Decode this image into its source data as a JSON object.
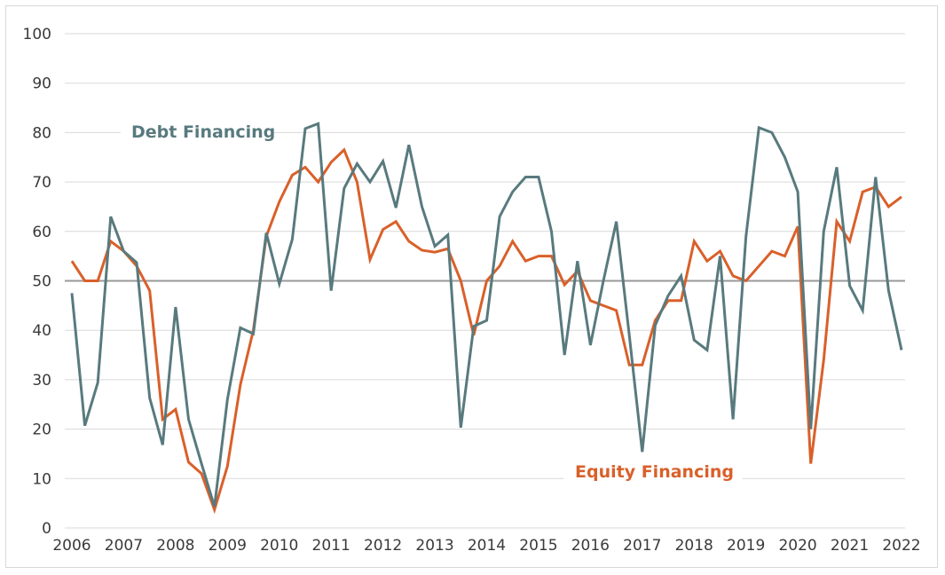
{
  "chart_data": {
    "type": "line",
    "title": "",
    "xlabel": "",
    "ylabel": "",
    "ylim": [
      0,
      100
    ],
    "yticks": [
      0,
      10,
      20,
      30,
      40,
      50,
      60,
      70,
      80,
      90,
      100
    ],
    "xlim": [
      2006,
      2022
    ],
    "xticks": [
      "2006",
      "2007",
      "2008",
      "2009",
      "2010",
      "2011",
      "2012",
      "2013",
      "2014",
      "2015",
      "2016",
      "2017",
      "2018",
      "2019",
      "2020",
      "2021",
      "2022"
    ],
    "frequency": "quarterly",
    "grid": true,
    "reference_line": 50,
    "colors": {
      "debt": "#587a7e",
      "equity": "#d9602a",
      "grid": "#d9d9d9",
      "reference": "#9a9a9a"
    },
    "series": [
      {
        "name": "Debt Financing",
        "values": [
          47.5,
          20.7,
          29.4,
          63,
          56,
          53.7,
          26.3,
          16.8,
          44.7,
          22,
          13,
          4.3,
          26,
          40.5,
          39.3,
          59.7,
          49.4,
          58.4,
          80.8,
          81.8,
          48,
          68.7,
          73.7,
          70,
          74.2,
          64.8,
          77.5,
          65,
          57,
          59.3,
          20.3,
          40.8,
          42,
          63,
          68,
          71,
          71,
          60,
          35,
          54,
          37,
          50,
          62,
          39,
          15.4,
          41,
          47,
          51,
          38,
          36,
          55,
          22,
          59,
          81,
          80,
          75,
          68,
          20,
          60,
          73,
          49,
          44,
          71,
          48,
          36
        ]
      },
      {
        "name": "Equity Financing",
        "values": [
          54,
          50,
          50,
          58,
          56,
          53,
          48,
          22,
          24,
          13.3,
          11,
          3.7,
          12.5,
          29,
          40,
          59,
          66,
          71.4,
          73,
          70,
          74,
          76.5,
          70,
          54.3,
          60.4,
          62,
          58,
          56.2,
          55.8,
          56.5,
          50,
          39,
          50,
          53,
          58,
          54,
          55,
          55,
          49.2,
          52,
          46,
          45,
          44,
          33,
          33,
          42,
          46,
          46,
          58,
          54,
          56,
          51,
          50,
          53,
          56,
          55,
          61,
          13,
          34,
          62,
          58,
          68,
          69,
          65,
          67
        ]
      }
    ]
  }
}
